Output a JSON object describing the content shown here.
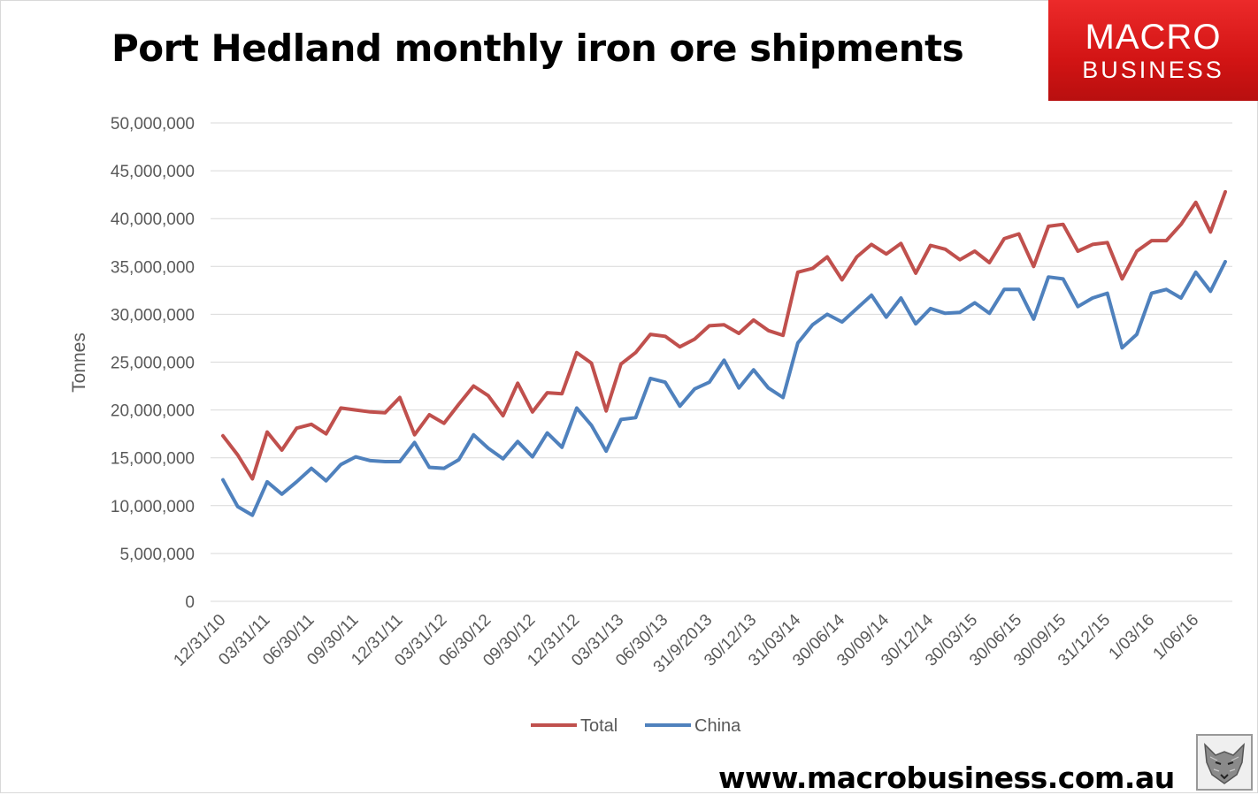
{
  "header": {
    "title": "Port Hedland monthly iron ore shipments"
  },
  "logo": {
    "line1": "MACRO",
    "line2": "BUSINESS",
    "bg_color": "#e11b1b"
  },
  "footer": {
    "url": "www.macrobusiness.com.au",
    "icon": "wolf-icon"
  },
  "chart_data": {
    "type": "line",
    "title": "Port Hedland monthly iron ore shipments",
    "xlabel": "",
    "ylabel": "Tonnes",
    "ylim": [
      0,
      50000000
    ],
    "yticks": [
      "0",
      "5,000,000",
      "10,000,000",
      "15,000,000",
      "20,000,000",
      "25,000,000",
      "30,000,000",
      "35,000,000",
      "40,000,000",
      "45,000,000",
      "50,000,000"
    ],
    "grid": true,
    "legend_position": "bottom",
    "tick_labels": [
      "12/31/10",
      "03/31/11",
      "06/30/11",
      "09/30/11",
      "12/31/11",
      "03/31/12",
      "06/30/12",
      "09/30/12",
      "12/31/12",
      "03/31/13",
      "06/30/13",
      "31/9/2013",
      "30/12/13",
      "31/03/14",
      "30/06/14",
      "30/09/14",
      "30/12/14",
      "30/03/15",
      "30/06/15",
      "30/09/15",
      "31/12/15",
      "1/03/16",
      "1/06/16"
    ],
    "tick_every": 3,
    "series": [
      {
        "name": "Total",
        "color": "#c0504d",
        "values": [
          17300000,
          15300000,
          12800000,
          17700000,
          15800000,
          18100000,
          18500000,
          17500000,
          20200000,
          20000000,
          19800000,
          19700000,
          21300000,
          17400000,
          19500000,
          18600000,
          20600000,
          22500000,
          21500000,
          19400000,
          22800000,
          19800000,
          21800000,
          21700000,
          26000000,
          24900000,
          19900000,
          24800000,
          26000000,
          27900000,
          27700000,
          26600000,
          27400000,
          28800000,
          28900000,
          28000000,
          29400000,
          28300000,
          27800000,
          34400000,
          34800000,
          36000000,
          33600000,
          36000000,
          37300000,
          36300000,
          37400000,
          34300000,
          37200000,
          36800000,
          35700000,
          36600000,
          35400000,
          37900000,
          38400000,
          35000000,
          39200000,
          39400000,
          36600000,
          37300000,
          37500000,
          33700000,
          36600000,
          37700000,
          37700000,
          39400000,
          41700000,
          38600000,
          42800000
        ]
      },
      {
        "name": "China",
        "color": "#4f81bd",
        "values": [
          12700000,
          9900000,
          9000000,
          12500000,
          11200000,
          12500000,
          13900000,
          12600000,
          14300000,
          15100000,
          14700000,
          14600000,
          14600000,
          16600000,
          14000000,
          13900000,
          14800000,
          17400000,
          16000000,
          14900000,
          16700000,
          15100000,
          17600000,
          16100000,
          20200000,
          18400000,
          15700000,
          19000000,
          19200000,
          23300000,
          22900000,
          20400000,
          22200000,
          22900000,
          25200000,
          22300000,
          24200000,
          22300000,
          21300000,
          27000000,
          28900000,
          30000000,
          29200000,
          30600000,
          32000000,
          29700000,
          31700000,
          29000000,
          30600000,
          30100000,
          30200000,
          31200000,
          30100000,
          32600000,
          32600000,
          29500000,
          33900000,
          33700000,
          30800000,
          31700000,
          32200000,
          26500000,
          27900000,
          32200000,
          32600000,
          31700000,
          34400000,
          32400000,
          35500000
        ]
      }
    ]
  }
}
